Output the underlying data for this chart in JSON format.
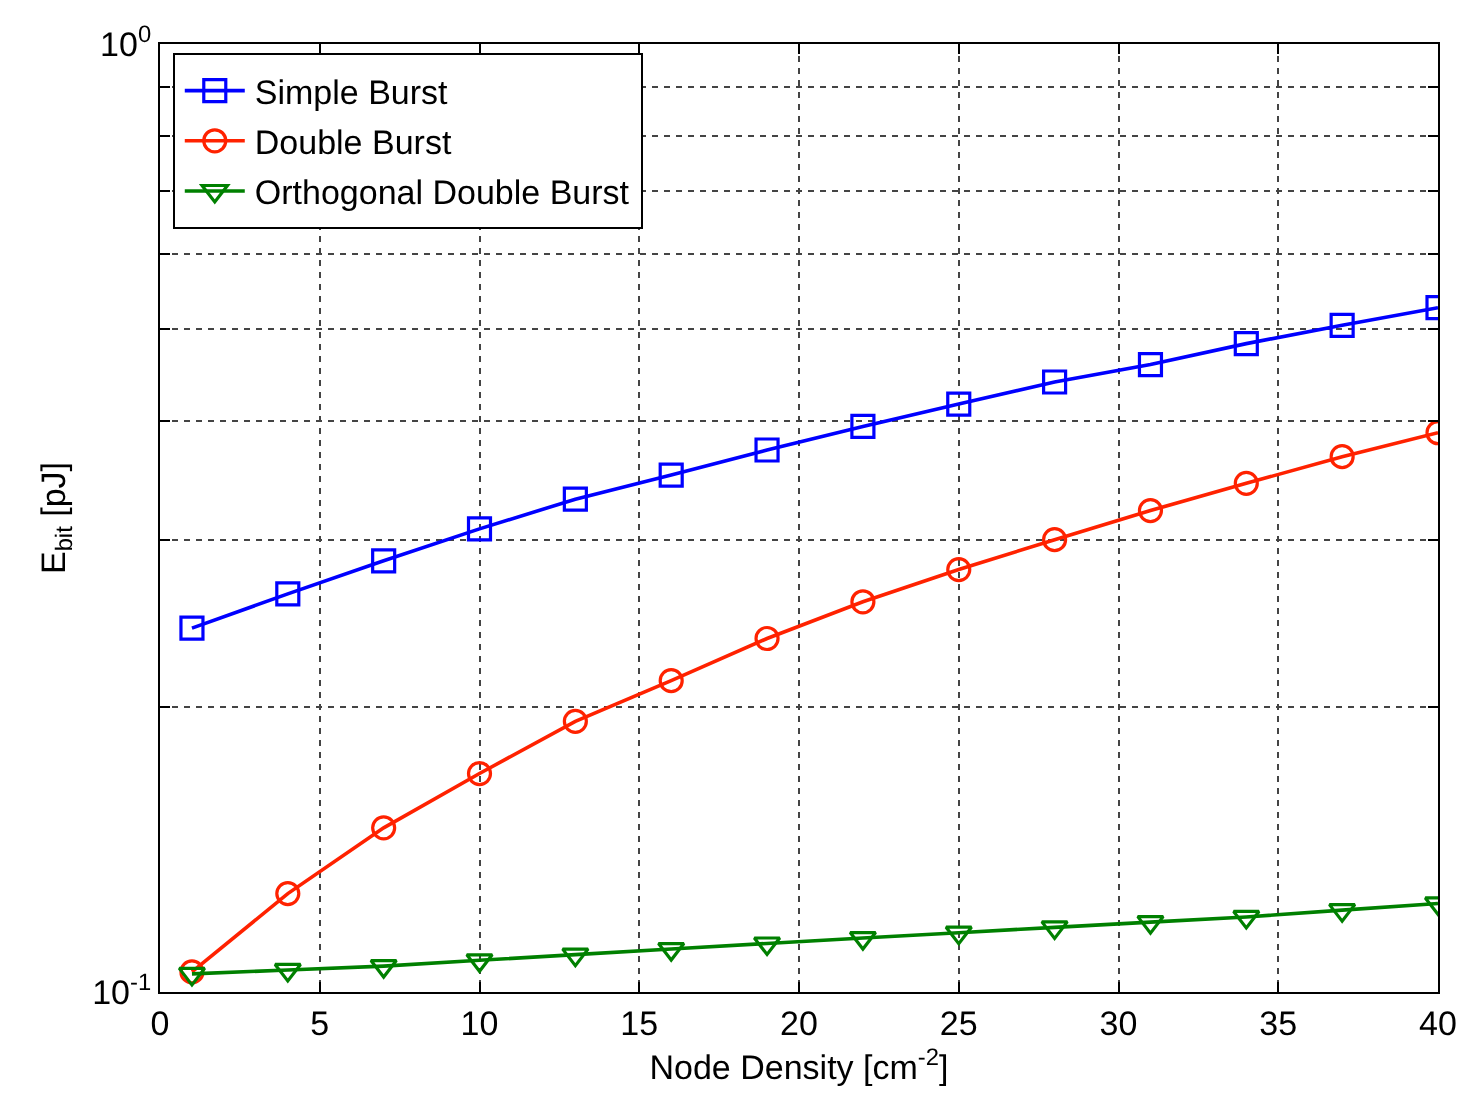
{
  "chart_data": {
    "type": "line",
    "xlabel": "Node Density [cm$^{-2}$]",
    "ylabel": "E$_{bit}$ [pJ]",
    "x": [
      1,
      4,
      7,
      10,
      13,
      16,
      19,
      22,
      25,
      28,
      31,
      34,
      37,
      40
    ],
    "series": [
      {
        "name": "Simple Burst",
        "color": "#0000ff",
        "marker": "square",
        "values": [
          0.242,
          0.263,
          0.285,
          0.308,
          0.331,
          0.351,
          0.373,
          0.395,
          0.417,
          0.44,
          0.459,
          0.483,
          0.505,
          0.527
        ]
      },
      {
        "name": "Double Burst",
        "color": "#ff2200",
        "marker": "circle",
        "values": [
          0.105,
          0.127,
          0.149,
          0.17,
          0.193,
          0.213,
          0.236,
          0.258,
          0.279,
          0.3,
          0.322,
          0.344,
          0.367,
          0.389
        ]
      },
      {
        "name": "Orthogonal Double Burst",
        "color": "#008000",
        "marker": "triangle",
        "values": [
          0.1045,
          0.1055,
          0.1065,
          0.108,
          0.1095,
          0.111,
          0.1125,
          0.114,
          0.1155,
          0.117,
          0.1185,
          0.12,
          0.122,
          0.124
        ]
      }
    ],
    "log": "y",
    "xlim": [
      0,
      40
    ],
    "xticks": [
      0,
      5,
      10,
      15,
      20,
      25,
      30,
      35,
      40
    ],
    "ylim": [
      0.1,
      1
    ],
    "yticks": [
      {
        "value": 0.1,
        "label": "10$^{-1}$"
      },
      {
        "value": 0.2,
        "label": null
      },
      {
        "value": 0.3,
        "label": null
      },
      {
        "value": 0.4,
        "label": null
      },
      {
        "value": 0.5,
        "label": null
      },
      {
        "value": 0.6,
        "label": null
      },
      {
        "value": 0.7,
        "label": null
      },
      {
        "value": 0.8,
        "label": null
      },
      {
        "value": 0.9,
        "label": null
      },
      {
        "value": 1,
        "label": "10$^{0}$"
      }
    ],
    "grid": true,
    "legend": "top left",
    "line_style": "solid"
  }
}
